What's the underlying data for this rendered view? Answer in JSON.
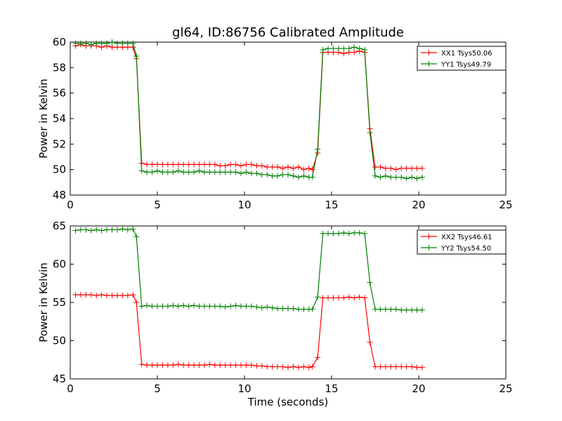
{
  "figure": {
    "title": "gl64, ID:86756 Calibrated Amplitude",
    "xlabel": "Time (seconds)"
  },
  "chart_data": [
    {
      "type": "line",
      "ylabel": "Power in Kelvin",
      "xlim": [
        0,
        25
      ],
      "ylim": [
        48,
        60
      ],
      "xticks": [
        0,
        5,
        10,
        15,
        20,
        25
      ],
      "yticks": [
        48,
        50,
        52,
        54,
        56,
        58,
        60
      ],
      "legend_position": "top-right",
      "x": [
        0.3,
        0.6,
        0.9,
        1.2,
        1.5,
        1.8,
        2.1,
        2.4,
        2.7,
        3.0,
        3.3,
        3.6,
        3.8,
        4.1,
        4.4,
        4.7,
        5.0,
        5.3,
        5.6,
        5.9,
        6.2,
        6.5,
        6.8,
        7.1,
        7.4,
        7.7,
        8.0,
        8.3,
        8.6,
        8.9,
        9.2,
        9.5,
        9.8,
        10.1,
        10.4,
        10.7,
        11.0,
        11.3,
        11.6,
        11.9,
        12.2,
        12.5,
        12.8,
        13.1,
        13.4,
        13.7,
        13.9,
        14.2,
        14.5,
        14.8,
        15.1,
        15.4,
        15.7,
        16.0,
        16.3,
        16.6,
        16.9,
        17.2,
        17.5,
        17.8,
        18.1,
        18.4,
        18.7,
        19.0,
        19.3,
        19.6,
        19.9,
        20.2
      ],
      "series": [
        {
          "name": "XX1 Tsys50.06",
          "color": "#ff0000",
          "values": [
            59.7,
            59.8,
            59.7,
            59.7,
            59.7,
            59.6,
            59.7,
            59.6,
            59.6,
            59.6,
            59.6,
            59.6,
            58.7,
            50.5,
            50.4,
            50.4,
            50.4,
            50.4,
            50.4,
            50.4,
            50.4,
            50.4,
            50.4,
            50.4,
            50.4,
            50.4,
            50.4,
            50.4,
            50.3,
            50.3,
            50.4,
            50.4,
            50.3,
            50.4,
            50.4,
            50.3,
            50.3,
            50.2,
            50.2,
            50.2,
            50.1,
            50.2,
            50.1,
            50.2,
            50.0,
            50.1,
            50.0,
            51.3,
            59.2,
            59.2,
            59.2,
            59.2,
            59.1,
            59.2,
            59.2,
            59.3,
            59.2,
            53.2,
            50.2,
            50.2,
            50.1,
            50.1,
            50.0,
            50.1,
            50.1,
            50.1,
            50.1,
            50.1
          ]
        },
        {
          "name": "YY1 Tsys49.79",
          "color": "#008000",
          "values": [
            59.9,
            59.9,
            59.9,
            59.8,
            59.9,
            59.9,
            59.9,
            60.0,
            59.9,
            59.9,
            59.9,
            59.9,
            58.9,
            49.9,
            49.8,
            49.8,
            49.9,
            49.8,
            49.8,
            49.8,
            49.9,
            49.8,
            49.8,
            49.8,
            49.9,
            49.8,
            49.8,
            49.8,
            49.8,
            49.8,
            49.8,
            49.8,
            49.7,
            49.8,
            49.7,
            49.7,
            49.6,
            49.6,
            49.5,
            49.5,
            49.6,
            49.6,
            49.5,
            49.4,
            49.5,
            49.4,
            49.4,
            51.6,
            59.4,
            59.5,
            59.5,
            59.5,
            59.5,
            59.5,
            59.6,
            59.5,
            59.4,
            52.9,
            49.5,
            49.4,
            49.5,
            49.4,
            49.4,
            49.4,
            49.3,
            49.4,
            49.3,
            49.4
          ]
        }
      ]
    },
    {
      "type": "line",
      "ylabel": "Power in Kelvin",
      "xlim": [
        0,
        25
      ],
      "ylim": [
        45,
        65
      ],
      "xticks": [
        0,
        5,
        10,
        15,
        20,
        25
      ],
      "yticks": [
        45,
        50,
        55,
        60,
        65
      ],
      "legend_position": "top-right",
      "x": [
        0.3,
        0.6,
        0.9,
        1.2,
        1.5,
        1.8,
        2.1,
        2.4,
        2.7,
        3.0,
        3.3,
        3.6,
        3.8,
        4.1,
        4.4,
        4.7,
        5.0,
        5.3,
        5.6,
        5.9,
        6.2,
        6.5,
        6.8,
        7.1,
        7.4,
        7.7,
        8.0,
        8.3,
        8.6,
        8.9,
        9.2,
        9.5,
        9.8,
        10.1,
        10.4,
        10.7,
        11.0,
        11.3,
        11.6,
        11.9,
        12.2,
        12.5,
        12.8,
        13.1,
        13.4,
        13.7,
        13.9,
        14.2,
        14.5,
        14.8,
        15.1,
        15.4,
        15.7,
        16.0,
        16.3,
        16.6,
        16.9,
        17.2,
        17.5,
        17.8,
        18.1,
        18.4,
        18.7,
        19.0,
        19.3,
        19.6,
        19.9,
        20.2
      ],
      "series": [
        {
          "name": "XX2 Tsys46.61",
          "color": "#ff0000",
          "values": [
            56.0,
            56.0,
            56.0,
            56.0,
            55.9,
            56.0,
            55.9,
            55.9,
            55.9,
            55.9,
            55.9,
            56.0,
            55.0,
            46.9,
            46.8,
            46.8,
            46.8,
            46.8,
            46.8,
            46.8,
            46.9,
            46.8,
            46.8,
            46.8,
            46.8,
            46.8,
            46.9,
            46.8,
            46.8,
            46.8,
            46.8,
            46.8,
            46.8,
            46.8,
            46.8,
            46.7,
            46.7,
            46.6,
            46.6,
            46.6,
            46.6,
            46.5,
            46.6,
            46.5,
            46.6,
            46.5,
            46.6,
            47.8,
            55.6,
            55.6,
            55.6,
            55.6,
            55.6,
            55.7,
            55.6,
            55.7,
            55.6,
            49.8,
            46.6,
            46.6,
            46.6,
            46.6,
            46.6,
            46.6,
            46.6,
            46.6,
            46.5,
            46.5
          ]
        },
        {
          "name": "YY2 Tsys54.50",
          "color": "#008000",
          "values": [
            64.4,
            64.5,
            64.5,
            64.4,
            64.5,
            64.4,
            64.5,
            64.5,
            64.5,
            64.6,
            64.5,
            64.6,
            63.6,
            54.5,
            54.6,
            54.5,
            54.5,
            54.5,
            54.5,
            54.6,
            54.5,
            54.6,
            54.5,
            54.6,
            54.5,
            54.5,
            54.5,
            54.5,
            54.5,
            54.4,
            54.5,
            54.6,
            54.5,
            54.5,
            54.5,
            54.4,
            54.3,
            54.4,
            54.3,
            54.2,
            54.2,
            54.2,
            54.2,
            54.1,
            54.1,
            54.1,
            54.1,
            55.7,
            64.0,
            64.0,
            64.0,
            64.0,
            64.1,
            64.0,
            64.1,
            64.1,
            64.0,
            57.6,
            54.1,
            54.1,
            54.1,
            54.1,
            54.1,
            54.0,
            54.0,
            54.0,
            54.0,
            54.0
          ]
        }
      ]
    }
  ]
}
